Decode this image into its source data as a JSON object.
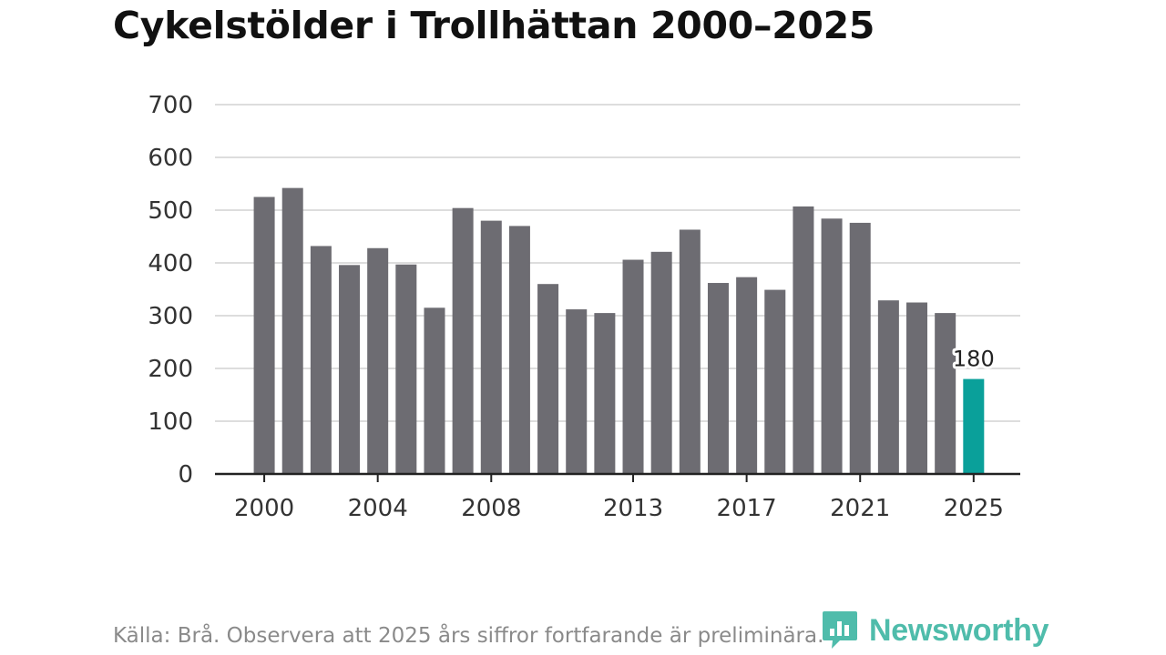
{
  "colors": {
    "bar": "#6d6c72",
    "highlight": "#0aa09a",
    "grid": "#dddddd",
    "axis": "#222222",
    "brand": "#3cb5a2"
  },
  "chart_data": {
    "type": "bar",
    "title": "Cykelstölder i Trollhättan 2000–2025",
    "xlabel": "",
    "ylabel": "",
    "ylim": [
      0,
      700
    ],
    "yticks": [
      0,
      100,
      200,
      300,
      400,
      500,
      600,
      700
    ],
    "xtick_labels": [
      "2000",
      "2004",
      "2008",
      "2013",
      "2017",
      "2021",
      "2025"
    ],
    "categories": [
      "2000",
      "2001",
      "2002",
      "2003",
      "2004",
      "2005",
      "2006",
      "2007",
      "2008",
      "2009",
      "2010",
      "2011",
      "2012",
      "2013",
      "2014",
      "2015",
      "2016",
      "2017",
      "2018",
      "2019",
      "2020",
      "2021",
      "2022",
      "2023",
      "2024",
      "2025"
    ],
    "values": [
      525,
      542,
      432,
      396,
      428,
      397,
      315,
      504,
      480,
      470,
      360,
      312,
      305,
      406,
      421,
      463,
      362,
      373,
      349,
      507,
      484,
      476,
      329,
      325,
      305,
      180
    ],
    "highlight_category": "2025",
    "data_labels": [
      {
        "category": "2025",
        "text": "180"
      }
    ],
    "grid": true
  },
  "footer": {
    "source": "Källa: Brå. Observera att 2025 års siffror fortfarande är preliminära."
  },
  "brand": {
    "name": "Newsworthy",
    "icon": "newsworthy-logo-icon"
  }
}
